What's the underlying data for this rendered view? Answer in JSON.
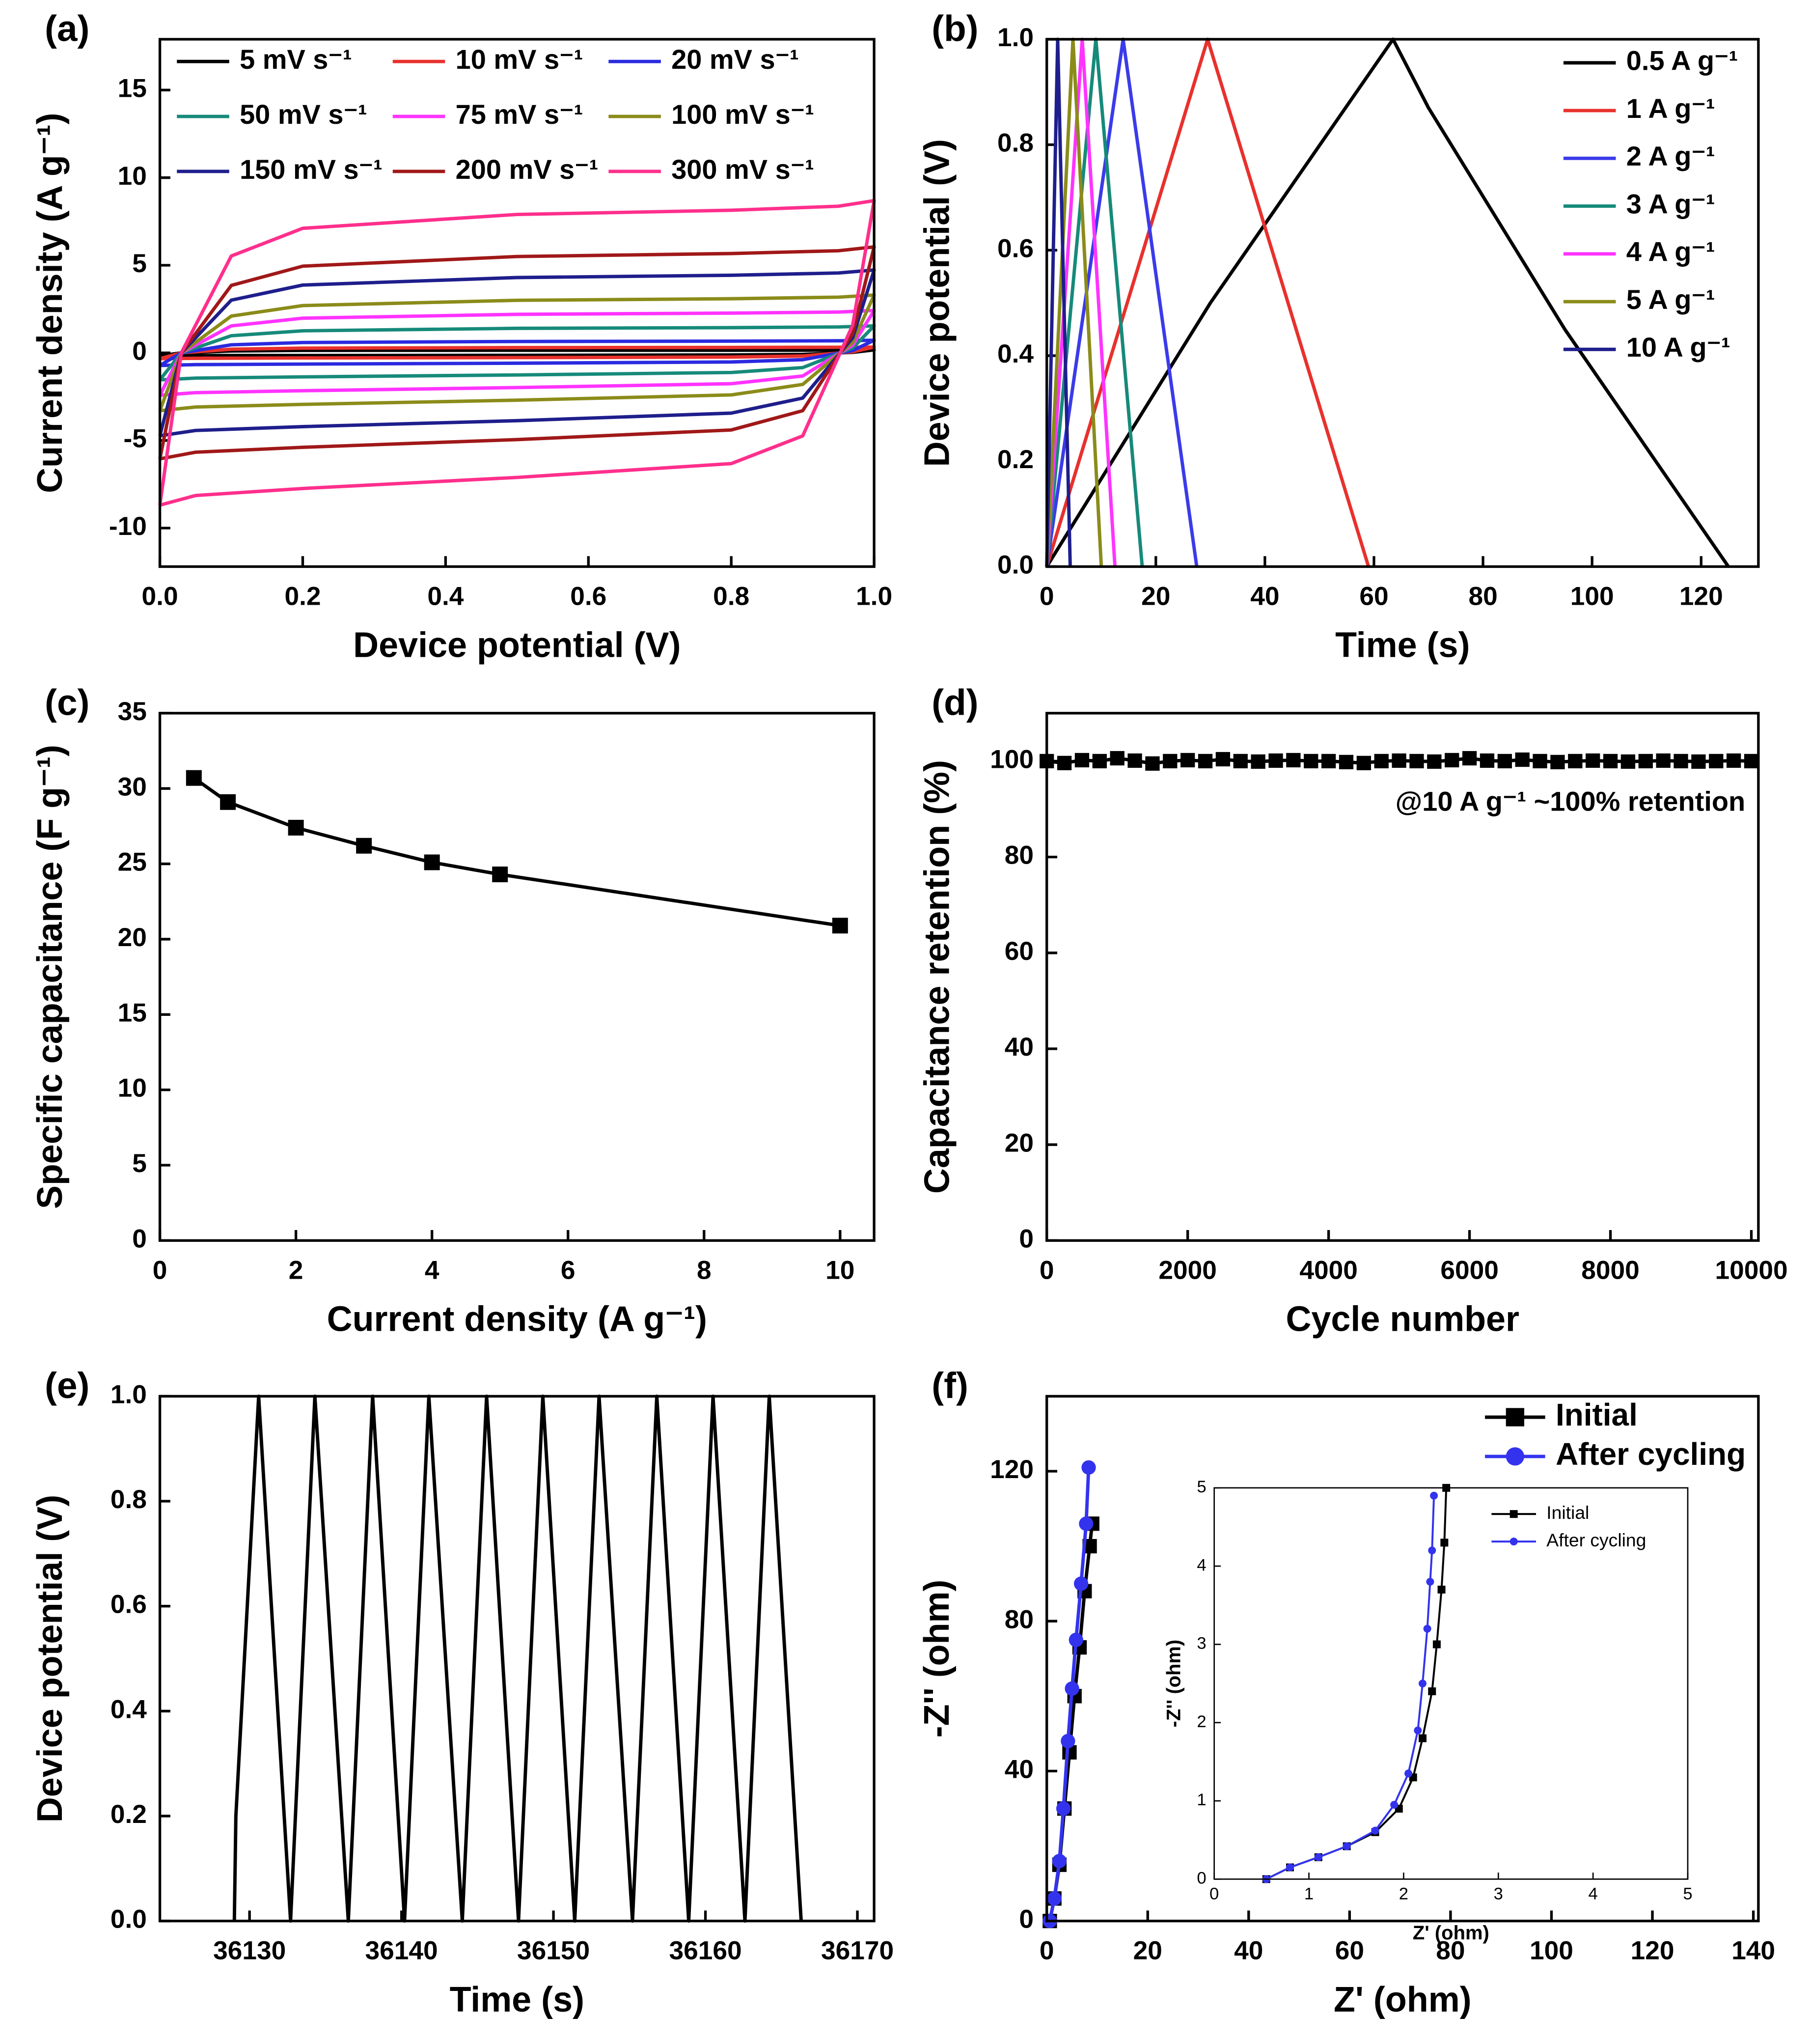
{
  "chart_data": [
    {
      "type": "line",
      "label": "(a)",
      "xlabel": "Device potential (V)",
      "ylabel": "Current density (A g⁻¹)",
      "xlim": [
        0,
        1
      ],
      "xticks": [
        {
          "value": 0,
          "label": "0.0"
        },
        0.2,
        0.4,
        0.6,
        0.8,
        {
          "value": 1,
          "label": "1.0"
        }
      ],
      "ylim": [
        -12.2,
        17.9
      ],
      "yticks": [
        -10,
        -5,
        0,
        5,
        10,
        15
      ],
      "legend": "upper left",
      "x": [
        0,
        0.03,
        0.1,
        0.2,
        0.5,
        0.8,
        0.95,
        1.0,
        1.0,
        0.97,
        0.9,
        0.8,
        0.5,
        0.2,
        0.05,
        0.0
      ],
      "series": [
        {
          "name": "5 mV s⁻¹",
          "color": "#000000",
          "values": [
            -0.17,
            0,
            0.11,
            0.14,
            0.15,
            0.15,
            0.16,
            0.17,
            0.17,
            0.03,
            -0.09,
            -0.12,
            -0.14,
            -0.15,
            -0.15,
            -0.17
          ]
        },
        {
          "name": "10 mV s⁻¹",
          "color": "#e8312d",
          "values": [
            -0.33,
            0,
            0.21,
            0.27,
            0.3,
            0.31,
            0.32,
            0.33,
            0.33,
            0.06,
            -0.18,
            -0.24,
            -0.27,
            -0.29,
            -0.31,
            -0.33
          ]
        },
        {
          "name": "20 mV s⁻¹",
          "color": "#2a2ae0",
          "values": [
            -0.72,
            0,
            0.46,
            0.59,
            0.65,
            0.67,
            0.69,
            0.72,
            0.72,
            0.13,
            -0.39,
            -0.52,
            -0.59,
            -0.64,
            -0.67,
            -0.72
          ]
        },
        {
          "name": "50 mV s⁻¹",
          "color": "#168a7a",
          "values": [
            -1.54,
            0,
            0.98,
            1.26,
            1.4,
            1.44,
            1.48,
            1.54,
            1.54,
            0.28,
            -0.84,
            -1.12,
            -1.26,
            -1.37,
            -1.44,
            -1.54
          ]
        },
        {
          "name": "75 mV s⁻¹",
          "color": "#ff33ff",
          "values": [
            -2.42,
            0,
            1.54,
            1.98,
            2.2,
            2.27,
            2.33,
            2.42,
            2.42,
            0.44,
            -1.32,
            -1.76,
            -1.98,
            -2.16,
            -2.27,
            -2.42
          ]
        },
        {
          "name": "100 mV s⁻¹",
          "color": "#8b8b1a",
          "values": [
            -3.3,
            0,
            2.1,
            2.7,
            3.0,
            3.09,
            3.18,
            3.3,
            3.3,
            0.6,
            -1.8,
            -2.4,
            -2.7,
            -2.94,
            -3.09,
            -3.3
          ]
        },
        {
          "name": "150 mV s⁻¹",
          "color": "#1e1e8c",
          "values": [
            -4.73,
            0,
            3.01,
            3.87,
            4.3,
            4.43,
            4.56,
            4.73,
            4.73,
            0.86,
            -2.58,
            -3.44,
            -3.87,
            -4.21,
            -4.43,
            -4.73
          ]
        },
        {
          "name": "200 mV s⁻¹",
          "color": "#a01818",
          "values": [
            -6.05,
            0,
            3.85,
            4.95,
            5.5,
            5.67,
            5.83,
            6.05,
            6.05,
            1.1,
            -3.3,
            -4.4,
            -4.95,
            -5.39,
            -5.67,
            -6.05
          ]
        },
        {
          "name": "300 mV s⁻¹",
          "color": "#ff2f8c",
          "values": [
            -8.69,
            0,
            5.53,
            7.11,
            7.9,
            8.14,
            8.37,
            8.69,
            8.69,
            1.58,
            -4.74,
            -6.32,
            -7.11,
            -7.74,
            -8.14,
            -8.69
          ]
        }
      ]
    },
    {
      "type": "line",
      "label": "(b)",
      "xlabel": "Time (s)",
      "ylabel": "Device potential (V)",
      "xlim": [
        0,
        130.5
      ],
      "xticks": [
        0,
        20,
        40,
        60,
        80,
        100,
        120
      ],
      "ylim": [
        0,
        1
      ],
      "yticks": [
        {
          "value": 0,
          "label": "0.0"
        },
        0.2,
        0.4,
        0.6,
        0.8,
        {
          "value": 1,
          "label": "1.0"
        }
      ],
      "legend": "upper right",
      "series": [
        {
          "name": "0.5 A g⁻¹",
          "color": "#000000",
          "x": [
            0,
            30,
            63.5,
            70,
            95,
            125
          ],
          "values": [
            0,
            0.5,
            1,
            0.87,
            0.45,
            0
          ]
        },
        {
          "name": "1 A g⁻¹",
          "color": "#e8312d",
          "x": [
            0,
            29.5,
            59
          ],
          "values": [
            0,
            1,
            0
          ]
        },
        {
          "name": "2 A g⁻¹",
          "color": "#3b3bea",
          "x": [
            0,
            14,
            27.5
          ],
          "values": [
            0,
            1,
            0
          ]
        },
        {
          "name": "3 A g⁻¹",
          "color": "#168a7a",
          "x": [
            0,
            9,
            17.5
          ],
          "values": [
            0,
            1,
            0
          ]
        },
        {
          "name": "4 A g⁻¹",
          "color": "#ff33ff",
          "x": [
            0,
            6.5,
            12.5
          ],
          "values": [
            0,
            1,
            0
          ]
        },
        {
          "name": "5 A g⁻¹",
          "color": "#8b8b1a",
          "x": [
            0,
            4.8,
            10
          ],
          "values": [
            0,
            1,
            0
          ]
        },
        {
          "name": "10 A g⁻¹",
          "color": "#1e1e8c",
          "x": [
            0,
            2,
            4.3
          ],
          "values": [
            0,
            1,
            0
          ]
        }
      ]
    },
    {
      "type": "line",
      "label": "(c)",
      "xlabel": "Current density (A g⁻¹)",
      "ylabel": "Specific capacitance (F g⁻¹)",
      "xlim": [
        0,
        10.5
      ],
      "xticks": [
        0,
        2,
        4,
        6,
        8,
        10
      ],
      "ylim": [
        0,
        35
      ],
      "yticks": [
        0,
        5,
        10,
        15,
        20,
        25,
        30,
        35
      ],
      "x": [
        0.5,
        1,
        2,
        3,
        4,
        5,
        10
      ],
      "series": [
        {
          "color": "#000000",
          "marker": "square",
          "values": [
            30.7,
            29.1,
            27.4,
            26.2,
            25.1,
            24.3,
            20.9
          ]
        }
      ]
    },
    {
      "type": "line",
      "label": "(d)",
      "xlabel": "Cycle number",
      "ylabel": "Capacitance retention (%)",
      "annotation": "@10 A g⁻¹ ~100% retention",
      "xlim": [
        0,
        10100
      ],
      "xticks": [
        0,
        2000,
        4000,
        6000,
        8000,
        10000
      ],
      "ylim": [
        0,
        110
      ],
      "yticks": [
        0,
        20,
        40,
        60,
        80,
        100
      ],
      "x": [
        0,
        250,
        500,
        750,
        1000,
        1250,
        1500,
        1750,
        2000,
        2250,
        2500,
        2750,
        3000,
        3250,
        3500,
        3750,
        4000,
        4250,
        4500,
        4750,
        5000,
        5250,
        5500,
        5750,
        6000,
        6250,
        6500,
        6750,
        7000,
        7250,
        7500,
        7750,
        8000,
        8250,
        8500,
        8750,
        9000,
        9250,
        9500,
        9750,
        10000
      ],
      "series": [
        {
          "color": "#000000",
          "marker": "square",
          "values": [
            100,
            99.6,
            100.2,
            100,
            100.6,
            100.1,
            99.5,
            100,
            100.2,
            100,
            100.4,
            100,
            99.9,
            100.1,
            100.2,
            100,
            100,
            99.8,
            99.6,
            100,
            100.1,
            100,
            99.9,
            100.2,
            100.6,
            100.1,
            100,
            100.3,
            100,
            99.8,
            100,
            100.1,
            100,
            99.9,
            100,
            100.1,
            100,
            99.9,
            100,
            100.1,
            100
          ]
        }
      ]
    },
    {
      "type": "line",
      "label": "(e)",
      "xlabel": "Time (s)",
      "ylabel": "Device potential (V)",
      "xlim": [
        36124.1,
        36171.1
      ],
      "xticks": [
        36130,
        36140,
        36150,
        36160,
        36170
      ],
      "ylim": [
        0,
        1
      ],
      "yticks": [
        {
          "value": 0,
          "label": "0.0"
        },
        0.2,
        0.4,
        0.6,
        0.8,
        {
          "value": 1,
          "label": "1.0"
        }
      ],
      "series": [
        {
          "color": "#000000",
          "x": [
            36129,
            36129.1,
            36130.6,
            36132.7,
            36134.3,
            36136.5,
            36138.1,
            36140.2,
            36141.8,
            36144,
            36145.6,
            36147.7,
            36149.3,
            36151.4,
            36153,
            36155.2,
            36156.8,
            36158.9,
            36160.5,
            36162.6,
            36164.2,
            36166.3
          ],
          "values": [
            0,
            0.2,
            1,
            0,
            1,
            0,
            1,
            0,
            1,
            0,
            1,
            0,
            1,
            0,
            1,
            0,
            1,
            0,
            1,
            0,
            1,
            0
          ]
        }
      ]
    },
    {
      "type": "line",
      "label": "(f)",
      "xlabel": "Z' (ohm)",
      "ylabel": "-Z'' (ohm)",
      "xlim": [
        0,
        141
      ],
      "xticks": [
        0,
        20,
        40,
        60,
        80,
        100,
        120,
        140
      ],
      "ylim": [
        0,
        140
      ],
      "yticks": [
        0,
        40,
        80,
        120
      ],
      "legend": "upper right",
      "series": [
        {
          "name": "Initial",
          "color": "#000000",
          "marker": "square",
          "x": [
            0.6,
            1.5,
            2.5,
            3.5,
            4.5,
            5.5,
            6.5,
            7.5,
            8.5,
            9
          ],
          "values": [
            0,
            6,
            15,
            30,
            45,
            60,
            73,
            88,
            100,
            106
          ]
        },
        {
          "name": "After cycling",
          "color": "#3333ee",
          "marker": "circle",
          "x": [
            0.6,
            1.5,
            2.5,
            3.3,
            4.2,
            5,
            5.8,
            6.8,
            7.8,
            8.3
          ],
          "values": [
            0,
            6,
            16,
            30,
            48,
            62,
            75,
            90,
            106,
            121
          ]
        }
      ]
    },
    {
      "type": "line",
      "xlabel": "Z' (ohm)",
      "ylabel": "-Z'' (ohm)",
      "xlim": [
        0,
        5
      ],
      "xticks": [
        0,
        1,
        2,
        3,
        4,
        5
      ],
      "ylim": [
        0,
        5
      ],
      "yticks": [
        0,
        1,
        2,
        3,
        4,
        5
      ],
      "legend": "upper right",
      "series": [
        {
          "name": "Initial",
          "color": "#000000",
          "marker": "square",
          "x": [
            0.55,
            0.8,
            1.1,
            1.4,
            1.7,
            1.95,
            2.1,
            2.2,
            2.3,
            2.35,
            2.4,
            2.43,
            2.45
          ],
          "values": [
            0,
            0.15,
            0.28,
            0.42,
            0.6,
            0.9,
            1.3,
            1.8,
            2.4,
            3.0,
            3.7,
            4.3,
            5.0
          ]
        },
        {
          "name": "After cycling",
          "color": "#3333ee",
          "marker": "circle",
          "x": [
            0.55,
            0.8,
            1.1,
            1.4,
            1.7,
            1.9,
            2.05,
            2.15,
            2.2,
            2.25,
            2.28,
            2.3,
            2.32
          ],
          "values": [
            0,
            0.15,
            0.28,
            0.42,
            0.62,
            0.95,
            1.35,
            1.9,
            2.5,
            3.2,
            3.8,
            4.2,
            4.9
          ]
        }
      ]
    }
  ]
}
